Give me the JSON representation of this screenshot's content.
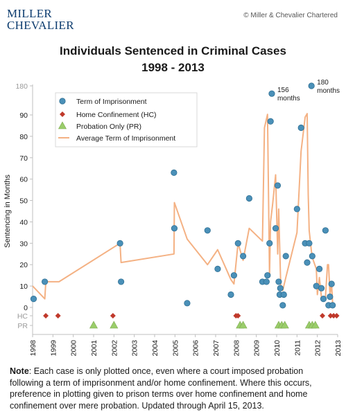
{
  "header": {
    "logo_line1": "MILLER",
    "logo_line2": "CHEVALIER",
    "copyright": "© Miller & Chevalier Chartered"
  },
  "chart_data": {
    "type": "scatter",
    "title": "Individuals Sentenced in Criminal Cases",
    "subtitle": "1998 - 2013",
    "ylabel": "Sentencing in Months",
    "xlim": [
      1998,
      2013
    ],
    "ylim": [
      0,
      180
    ],
    "x_ticks": [
      "1998",
      "1999",
      "2000",
      "2001",
      "2002",
      "2003",
      "2004",
      "2005",
      "2006",
      "2007",
      "2008",
      "2009",
      "2010",
      "2011",
      "2012",
      "2013"
    ],
    "y_ticks": [
      "0",
      "10",
      "20",
      "30",
      "40",
      "50",
      "60",
      "70",
      "80",
      "90",
      "180"
    ],
    "y_cat_ticks": [
      "HC",
      "PR"
    ],
    "legend": [
      {
        "label": "Term of Imprisonment",
        "marker": "circle",
        "color": "#4a90b8"
      },
      {
        "label": "Home Confinement (HC)",
        "marker": "diamond",
        "color": "#c0392b"
      },
      {
        "label": "Probation  Only (PR)",
        "marker": "triangle",
        "color": "#9acd6a"
      },
      {
        "label": "Average Term of Imprisonment",
        "marker": "line",
        "color": "#f4b183"
      }
    ],
    "annotations": [
      {
        "text": "156",
        "text2": "months",
        "x": 2009.76,
        "y": 156
      },
      {
        "text": "180",
        "text2": "months",
        "x": 2011.71,
        "y": 180
      }
    ],
    "series": [
      {
        "name": "Term of Imprisonment",
        "points": [
          [
            1998.05,
            4
          ],
          [
            1998.6,
            12
          ],
          [
            2002.3,
            30
          ],
          [
            2002.35,
            12
          ],
          [
            2004.95,
            63
          ],
          [
            2004.97,
            37
          ],
          [
            2005.6,
            2
          ],
          [
            2006.6,
            36
          ],
          [
            2007.1,
            18
          ],
          [
            2007.75,
            6
          ],
          [
            2007.9,
            15
          ],
          [
            2008.1,
            30
          ],
          [
            2008.35,
            24
          ],
          [
            2008.65,
            51
          ],
          [
            2009.3,
            12
          ],
          [
            2009.5,
            12
          ],
          [
            2009.55,
            15
          ],
          [
            2009.65,
            30
          ],
          [
            2009.7,
            87
          ],
          [
            2009.76,
            156
          ],
          [
            2009.95,
            37
          ],
          [
            2010.05,
            57
          ],
          [
            2010.1,
            12
          ],
          [
            2010.15,
            6
          ],
          [
            2010.18,
            9
          ],
          [
            2010.3,
            1
          ],
          [
            2010.35,
            6
          ],
          [
            2010.45,
            24
          ],
          [
            2011.0,
            46
          ],
          [
            2011.2,
            84
          ],
          [
            2011.4,
            30
          ],
          [
            2011.5,
            21
          ],
          [
            2011.6,
            30
          ],
          [
            2011.71,
            180
          ],
          [
            2011.75,
            24
          ],
          [
            2011.95,
            10
          ],
          [
            2012.1,
            18
          ],
          [
            2012.2,
            9
          ],
          [
            2012.3,
            4
          ],
          [
            2012.4,
            36
          ],
          [
            2012.55,
            1
          ],
          [
            2012.62,
            5
          ],
          [
            2012.7,
            11
          ],
          [
            2012.75,
            1
          ]
        ]
      },
      {
        "name": "Home Confinement (HC)",
        "x": [
          1998.65,
          1999.25,
          2001.95,
          2008.0,
          2008.1,
          2012.25,
          2012.65,
          2012.8,
          2012.95
        ]
      },
      {
        "name": "Probation  Only (PR)",
        "x": [
          2001.0,
          2002.0,
          2008.2,
          2008.35,
          2010.1,
          2010.25,
          2010.4,
          2011.6,
          2011.75,
          2011.9
        ]
      },
      {
        "name": "Average Term of Imprisonment",
        "points": [
          [
            1998.0,
            10
          ],
          [
            1998.6,
            4
          ],
          [
            1998.65,
            12
          ],
          [
            1999.3,
            12
          ],
          [
            2002.3,
            30
          ],
          [
            2002.35,
            21
          ],
          [
            2004.95,
            25
          ],
          [
            2004.97,
            49
          ],
          [
            2005.6,
            32
          ],
          [
            2006.6,
            20
          ],
          [
            2007.1,
            27
          ],
          [
            2007.75,
            13
          ],
          [
            2007.9,
            11
          ],
          [
            2008.1,
            30
          ],
          [
            2008.35,
            22
          ],
          [
            2008.65,
            37
          ],
          [
            2009.3,
            31
          ],
          [
            2009.4,
            84
          ],
          [
            2009.55,
            92
          ],
          [
            2009.65,
            15
          ],
          [
            2009.7,
            40
          ],
          [
            2009.8,
            48
          ],
          [
            2009.95,
            62
          ],
          [
            2010.05,
            25
          ],
          [
            2010.1,
            46
          ],
          [
            2010.2,
            10
          ],
          [
            2010.3,
            8
          ],
          [
            2010.45,
            14
          ],
          [
            2011.0,
            35
          ],
          [
            2011.2,
            73
          ],
          [
            2011.4,
            89
          ],
          [
            2011.5,
            94
          ],
          [
            2011.55,
            53
          ],
          [
            2011.6,
            36
          ],
          [
            2011.71,
            26
          ],
          [
            2011.8,
            22
          ],
          [
            2011.95,
            18
          ],
          [
            2012.0,
            6
          ],
          [
            2012.1,
            14
          ],
          [
            2012.2,
            5
          ],
          [
            2012.3,
            4
          ],
          [
            2012.4,
            5
          ],
          [
            2012.5,
            20
          ],
          [
            2012.55,
            20
          ],
          [
            2012.62,
            6
          ],
          [
            2012.7,
            11
          ],
          [
            2012.75,
            2
          ]
        ]
      }
    ]
  },
  "note": {
    "label": "Note",
    "text": ": Each case is only plotted once, even where a court imposed probation following a term of imprisonment and/or home confinement.  Where this occurs, preference in plotting given to prison terms over home confinement and home confinement over mere probation.  Updated through April 15, 2013."
  }
}
